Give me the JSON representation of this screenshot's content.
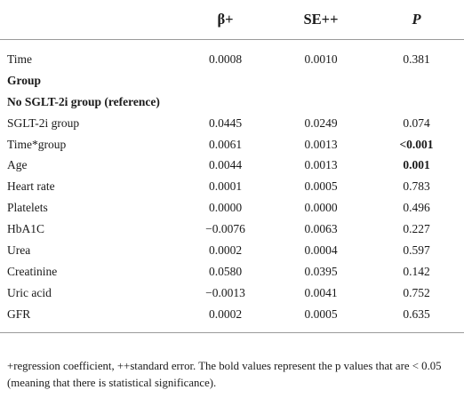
{
  "header": {
    "col0": "",
    "col1": "β+",
    "col2": "SE++",
    "col3": "P"
  },
  "rows": [
    {
      "label": "Time",
      "beta": "0.0008",
      "se": "0.0010",
      "p": "0.381"
    },
    {
      "label": "Group",
      "beta": "",
      "se": "",
      "p": ""
    },
    {
      "label": "No SGLT-2i group (reference)",
      "beta": "",
      "se": "",
      "p": ""
    },
    {
      "label": "SGLT-2i group",
      "beta": "0.0445",
      "se": "0.0249",
      "p": "0.074"
    },
    {
      "label": "Time*group",
      "beta": "0.0061",
      "se": "0.0013",
      "p": "<0.001"
    },
    {
      "label": "Age",
      "beta": "0.0044",
      "se": "0.0013",
      "p": "0.001"
    },
    {
      "label": "Heart rate",
      "beta": "0.0001",
      "se": "0.0005",
      "p": "0.783"
    },
    {
      "label": "Platelets",
      "beta": "0.0000",
      "se": "0.0000",
      "p": "0.496"
    },
    {
      "label": "HbA1C",
      "beta": "−0.0076",
      "se": "0.0063",
      "p": "0.227"
    },
    {
      "label": "Urea",
      "beta": "0.0002",
      "se": "0.0004",
      "p": "0.597"
    },
    {
      "label": "Creatinine",
      "beta": "0.0580",
      "se": "0.0395",
      "p": "0.142"
    },
    {
      "label": "Uric acid",
      "beta": "−0.0013",
      "se": "0.0041",
      "p": "0.752"
    },
    {
      "label": "GFR",
      "beta": "0.0002",
      "se": "0.0005",
      "p": "0.635"
    }
  ],
  "footnote": "+regression coefficient, ++standard error. The bold values represent the p values that are < 0.05 (meaning that there is statistical significance)."
}
